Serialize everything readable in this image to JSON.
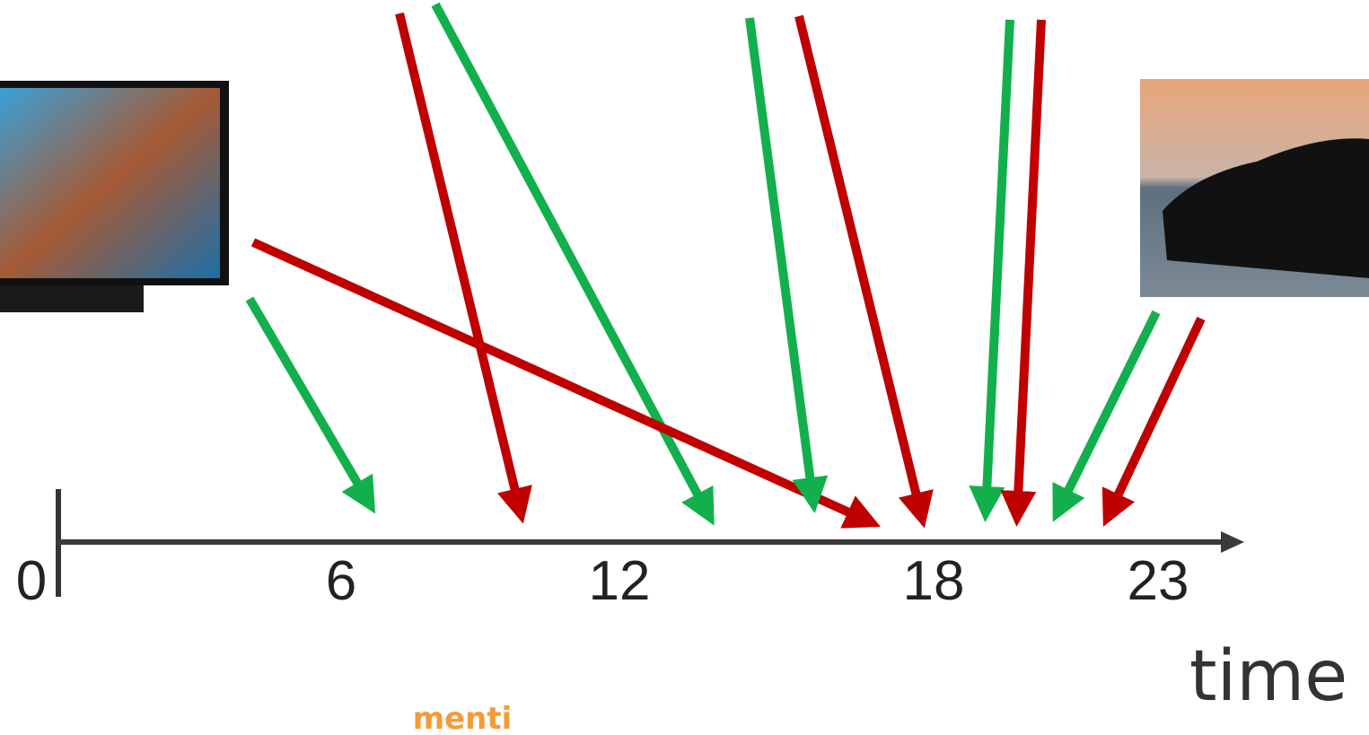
{
  "axis": {
    "ticks": [
      "0",
      "6",
      "12",
      "18",
      "23"
    ],
    "label": "time"
  },
  "footer": "menti"
}
